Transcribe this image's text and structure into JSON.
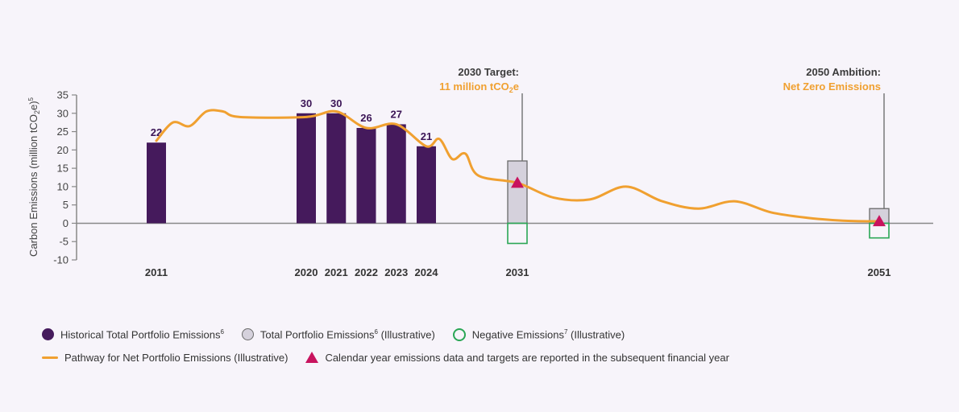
{
  "chart_data": {
    "type": "bar",
    "ylabel": "Carbon Emissions (million tCO",
    "ylabel_sub": "2",
    "ylabel_tail": "e)",
    "ylabel_sup": "5",
    "ylim": [
      -10,
      35
    ],
    "yticks": [
      35,
      30,
      25,
      20,
      15,
      10,
      5,
      0,
      -5,
      -10
    ],
    "x_tick_labels": [
      "2011",
      "2020",
      "2021",
      "2022",
      "2023",
      "2024",
      "2031",
      "2051"
    ],
    "historical": [
      {
        "year": 2011,
        "value": 22
      },
      {
        "year": 2020,
        "value": 30
      },
      {
        "year": 2021,
        "value": 30
      },
      {
        "year": 2022,
        "value": 26
      },
      {
        "year": 2023,
        "value": 27
      },
      {
        "year": 2024,
        "value": 21
      }
    ],
    "illustrative_total": [
      {
        "year": 2031,
        "value": 17
      },
      {
        "year": 2051,
        "value": 4
      }
    ],
    "illustrative_negative": [
      {
        "year": 2031,
        "value": -5.5
      },
      {
        "year": 2051,
        "value": -4
      }
    ],
    "pathway": [
      [
        2011,
        22.5
      ],
      [
        2012,
        27.5
      ],
      [
        2013,
        26.5
      ],
      [
        2014,
        30.5
      ],
      [
        2015,
        30.5
      ],
      [
        2016,
        29
      ],
      [
        2020,
        29
      ],
      [
        2021,
        30.5
      ],
      [
        2022,
        26
      ],
      [
        2023,
        27
      ],
      [
        2024,
        21
      ],
      [
        2025,
        23
      ],
      [
        2026,
        17.5
      ],
      [
        2027,
        19
      ],
      [
        2028,
        13
      ],
      [
        2031,
        11
      ],
      [
        2033,
        7
      ],
      [
        2035,
        6.5
      ],
      [
        2037,
        10
      ],
      [
        2039,
        6
      ],
      [
        2041,
        4
      ],
      [
        2043,
        6
      ],
      [
        2045,
        3
      ],
      [
        2047,
        1.5
      ],
      [
        2049,
        0.7
      ],
      [
        2051,
        0.5
      ]
    ],
    "targets": [
      {
        "year": 2031,
        "value": 11
      },
      {
        "year": 2051,
        "value": 0.5
      }
    ],
    "annotations": [
      {
        "year": 2031,
        "title": "2030 Target:",
        "sub": "11 million tCO",
        "sub_sub": "2",
        "sub_tail": "e"
      },
      {
        "year": 2051,
        "title": "2050 Ambition:",
        "sub": "Net Zero Emissions"
      }
    ],
    "colors": {
      "historical": "#451a5c",
      "total_fill": "#d5d1dc",
      "total_stroke": "#6a6a6a",
      "negative": "#2aa655",
      "pathway": "#f0a030",
      "target": "#c8135e",
      "axis": "#888888"
    }
  },
  "legend": {
    "historical": "Historical Total Portfolio Emissions",
    "historical_sup": "6",
    "total": "Total Portfolio Emissions",
    "total_sup": "6",
    "total_tail": " (Illustrative)",
    "negative": "Negative Emissions",
    "negative_sup": "7",
    "negative_tail": " (Illustrative)",
    "pathway": "Pathway for Net Portfolio Emissions (Illustrative)",
    "target": "Calendar year emissions data and targets are reported in the subsequent financial year"
  }
}
